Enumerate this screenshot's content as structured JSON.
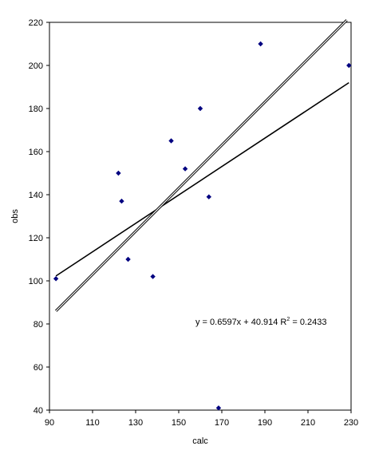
{
  "chart_data": {
    "type": "scatter",
    "title": "",
    "xlabel": "calc",
    "ylabel": "obs",
    "xlim": [
      90,
      230
    ],
    "ylim": [
      40,
      220
    ],
    "xticks": [
      90,
      110,
      130,
      150,
      170,
      190,
      210,
      230
    ],
    "yticks": [
      40,
      60,
      80,
      100,
      120,
      140,
      160,
      180,
      200,
      220
    ],
    "xtick_labels": [
      "90",
      "110",
      "130",
      "150",
      "170",
      "190",
      "210",
      "230"
    ],
    "ytick_labels": [
      "40",
      "60",
      "80",
      "100",
      "120",
      "140",
      "160",
      "180",
      "200",
      "220"
    ],
    "grid": false,
    "legend": "none",
    "marker_color": "#000080",
    "points": [
      {
        "x": 93,
        "y": 101
      },
      {
        "x": 122,
        "y": 150
      },
      {
        "x": 123.5,
        "y": 137
      },
      {
        "x": 126.5,
        "y": 110
      },
      {
        "x": 138,
        "y": 102
      },
      {
        "x": 146.5,
        "y": 165
      },
      {
        "x": 153,
        "y": 152
      },
      {
        "x": 160,
        "y": 180
      },
      {
        "x": 164,
        "y": 139
      },
      {
        "x": 168.5,
        "y": 41
      },
      {
        "x": 188,
        "y": 210
      },
      {
        "x": 229,
        "y": 200
      }
    ],
    "lines": [
      {
        "slope": 0.6597,
        "intercept": 40.914,
        "x_range": [
          93,
          229
        ],
        "style": "solid"
      },
      {
        "slope": 1.0,
        "intercept": -7,
        "x_range": [
          93,
          228
        ],
        "style": "double"
      }
    ],
    "annotation": {
      "text_main": "y = 0.6597x + 40.914 R",
      "text_sup": "2",
      "text_end": " = 0.2433"
    }
  }
}
